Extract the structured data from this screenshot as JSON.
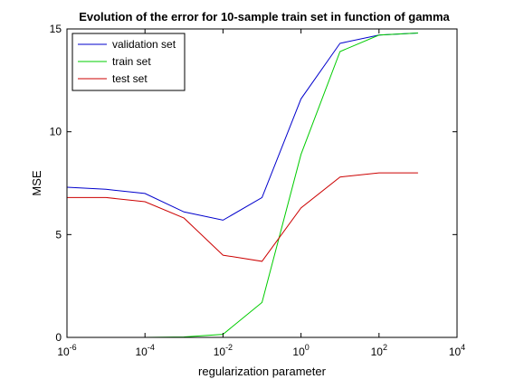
{
  "chart_data": {
    "type": "line",
    "title": "Evolution of the error for 10-sample train set in function of gamma",
    "xlabel": "regularization parameter",
    "ylabel": "MSE",
    "xscale": "log",
    "xlim": [
      1e-06,
      10000
    ],
    "ylim": [
      0,
      15
    ],
    "x_ticks": [
      {
        "value": 1e-06,
        "base": "10",
        "exp": "-6"
      },
      {
        "value": 0.0001,
        "base": "10",
        "exp": "-4"
      },
      {
        "value": 0.01,
        "base": "10",
        "exp": "-2"
      },
      {
        "value": 1,
        "base": "10",
        "exp": "0"
      },
      {
        "value": 100,
        "base": "10",
        "exp": "2"
      },
      {
        "value": 10000,
        "base": "10",
        "exp": "4"
      }
    ],
    "y_ticks": [
      0,
      5,
      10,
      15
    ],
    "grid": false,
    "legend_position": "top-left",
    "x": [
      1e-06,
      1e-05,
      0.0001,
      0.001,
      0.01,
      0.1,
      1,
      10,
      100,
      1000
    ],
    "series": [
      {
        "name": "validation set",
        "color": "#0000cc",
        "values": [
          7.3,
          7.2,
          7.0,
          6.1,
          5.7,
          6.8,
          11.6,
          14.3,
          14.7,
          14.8
        ]
      },
      {
        "name": "train set",
        "color": "#00cc00",
        "values": [
          0.0,
          0.0,
          0.0,
          0.02,
          0.15,
          1.7,
          8.9,
          13.9,
          14.7,
          14.8
        ]
      },
      {
        "name": "test set",
        "color": "#cc0000",
        "values": [
          6.8,
          6.8,
          6.6,
          5.8,
          4.0,
          3.7,
          6.3,
          7.8,
          8.0,
          8.0
        ]
      }
    ]
  }
}
